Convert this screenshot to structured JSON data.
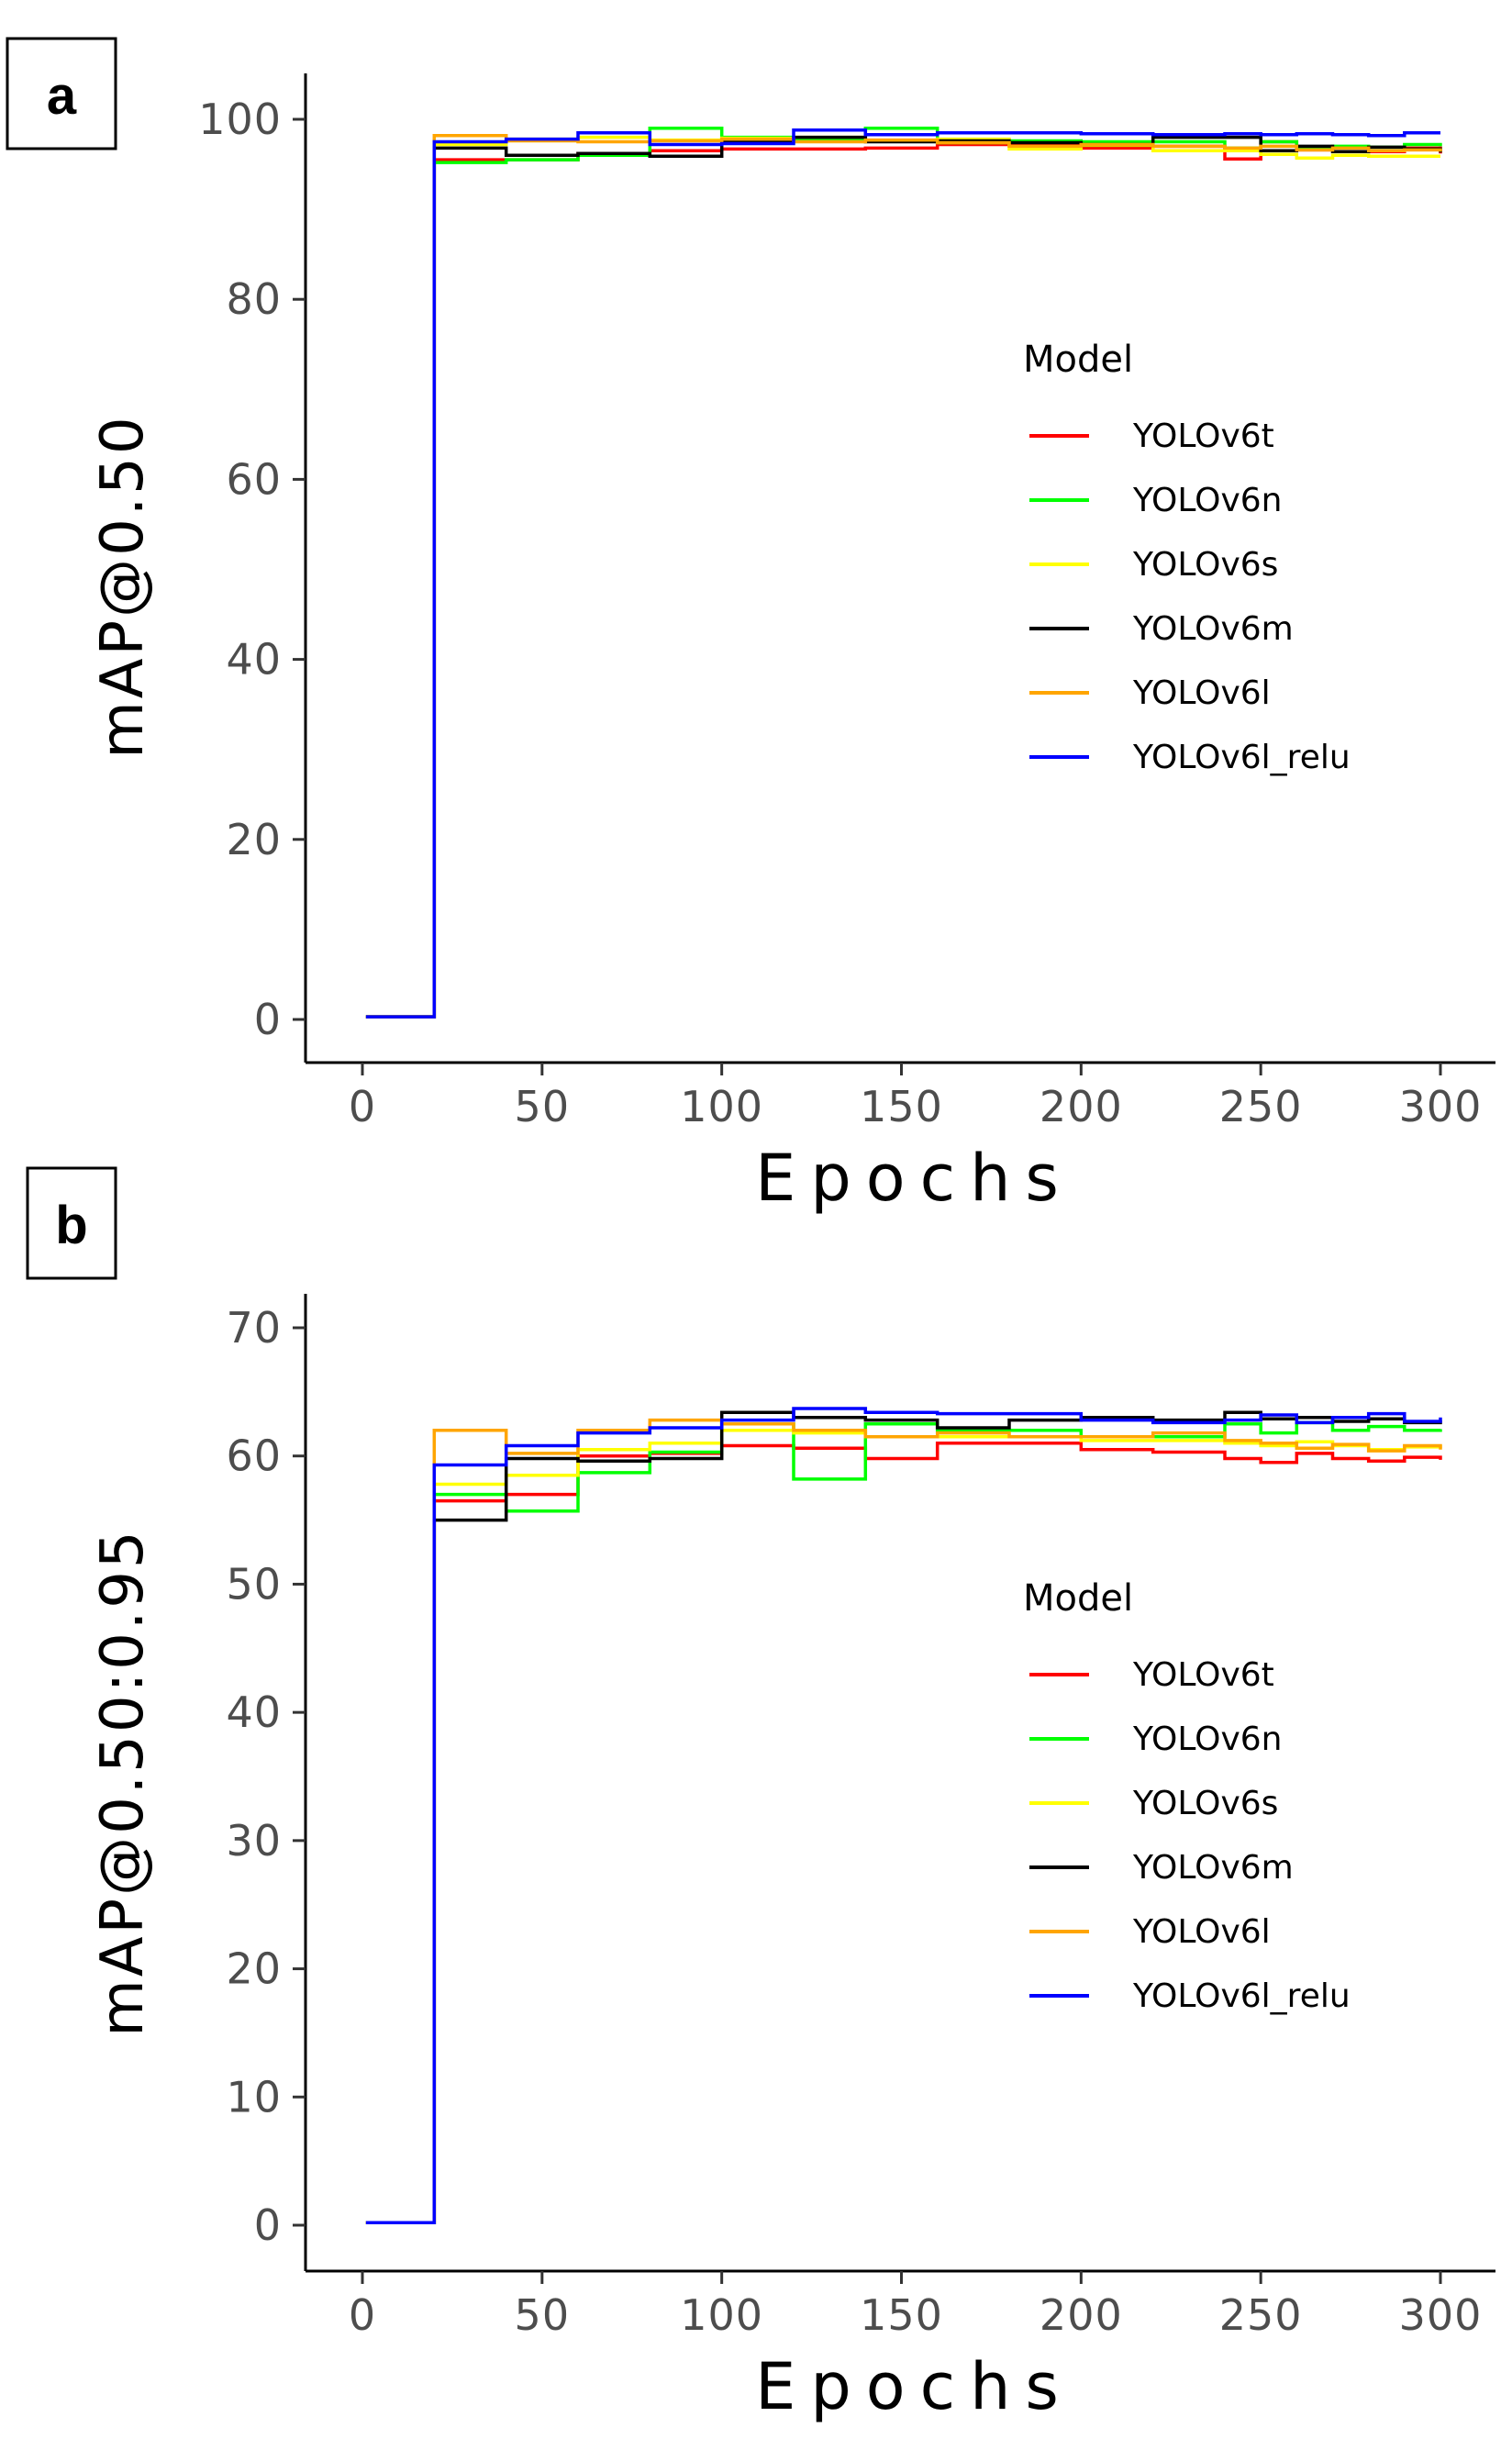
{
  "chart_data": [
    {
      "type": "line",
      "panel": "a",
      "title": "",
      "xlabel": "Epochs",
      "ylabel": "mAP@0.50",
      "xlim": [
        0,
        300
      ],
      "ylim": [
        0,
        100
      ],
      "xticks": [
        "0",
        "50",
        "100",
        "150",
        "200",
        "250",
        "300"
      ],
      "yticks": [
        "0",
        "20",
        "40",
        "60",
        "80",
        "100"
      ],
      "legend_title": "Model",
      "legend_position": "right-middle",
      "series": [
        {
          "name": "YOLOv6t",
          "color": "#ff0000",
          "x": [
            1,
            20,
            20,
            40,
            60,
            80,
            100,
            120,
            140,
            160,
            180,
            200,
            220,
            240,
            250,
            260,
            270,
            280,
            290,
            300
          ],
          "y": [
            0.3,
            0.3,
            95.5,
            95.5,
            96.2,
            96.5,
            96.7,
            96.7,
            96.8,
            97.2,
            97.3,
            96.8,
            97.0,
            95.6,
            97.5,
            96.6,
            96.9,
            96.4,
            96.8,
            96.2
          ]
        },
        {
          "name": "YOLOv6n",
          "color": "#00ff00",
          "x": [
            1,
            20,
            20,
            40,
            60,
            80,
            100,
            120,
            140,
            160,
            180,
            200,
            220,
            240,
            250,
            260,
            270,
            280,
            290,
            300
          ],
          "y": [
            0.3,
            0.3,
            95.2,
            95.5,
            96.0,
            99.0,
            98.0,
            97.8,
            99.0,
            97.4,
            97.6,
            97.5,
            97.5,
            96.8,
            97.5,
            96.8,
            97.0,
            96.9,
            97.2,
            97.0
          ]
        },
        {
          "name": "YOLOv6s",
          "color": "#ffff00",
          "x": [
            1,
            20,
            20,
            40,
            60,
            80,
            100,
            120,
            140,
            160,
            180,
            200,
            220,
            240,
            250,
            260,
            270,
            280,
            290,
            300
          ],
          "y": [
            0.3,
            0.3,
            97.2,
            97.8,
            98.0,
            97.7,
            97.9,
            98.0,
            97.6,
            97.8,
            96.7,
            97.1,
            96.5,
            96.5,
            96.1,
            95.7,
            96.0,
            95.9,
            95.9,
            95.9
          ]
        },
        {
          "name": "YOLOv6m",
          "color": "#000000",
          "x": [
            1,
            20,
            20,
            40,
            60,
            80,
            100,
            120,
            140,
            160,
            180,
            200,
            220,
            240,
            250,
            260,
            270,
            280,
            290,
            300
          ],
          "y": [
            0.3,
            0.3,
            96.8,
            96.0,
            96.2,
            95.9,
            97.5,
            98.0,
            97.5,
            97.6,
            97.4,
            97.2,
            98.0,
            98.0,
            96.5,
            97.0,
            96.4,
            96.9,
            96.7,
            96.3
          ]
        },
        {
          "name": "YOLOv6l",
          "color": "#ffa500",
          "x": [
            1,
            20,
            20,
            40,
            60,
            80,
            100,
            120,
            140,
            160,
            180,
            200,
            220,
            240,
            250,
            260,
            270,
            280,
            290,
            300
          ],
          "y": [
            0.3,
            0.3,
            98.2,
            97.6,
            97.5,
            97.6,
            97.8,
            97.5,
            97.7,
            97.4,
            97.0,
            97.2,
            97.0,
            96.8,
            97.0,
            96.6,
            96.8,
            96.5,
            96.6,
            96.4
          ]
        },
        {
          "name": "YOLOv6l_relu",
          "color": "#0000ff",
          "x": [
            1,
            20,
            20,
            40,
            60,
            80,
            100,
            120,
            140,
            160,
            180,
            200,
            220,
            240,
            250,
            260,
            270,
            280,
            290,
            300
          ],
          "y": [
            0.3,
            0.3,
            97.5,
            97.8,
            98.5,
            97.2,
            97.3,
            98.8,
            98.3,
            98.5,
            98.5,
            98.4,
            98.3,
            98.4,
            98.3,
            98.4,
            98.3,
            98.2,
            98.5,
            98.5
          ]
        }
      ]
    },
    {
      "type": "line",
      "panel": "b",
      "title": "",
      "xlabel": "Epochs",
      "ylabel": "mAP@0.50:0.95",
      "xlim": [
        0,
        300
      ],
      "ylim": [
        0,
        70
      ],
      "xticks": [
        "0",
        "50",
        "100",
        "150",
        "200",
        "250",
        "300"
      ],
      "yticks": [
        "0",
        "10",
        "20",
        "30",
        "40",
        "50",
        "60",
        "70"
      ],
      "legend_title": "Model",
      "legend_position": "right-middle",
      "series": [
        {
          "name": "YOLOv6t",
          "color": "#ff0000",
          "x": [
            1,
            20,
            20,
            40,
            60,
            80,
            100,
            120,
            140,
            160,
            180,
            200,
            220,
            240,
            250,
            260,
            270,
            280,
            290,
            300
          ],
          "y": [
            0.2,
            0.2,
            56.5,
            57.0,
            60.0,
            60.2,
            60.8,
            60.6,
            59.8,
            61.0,
            61.0,
            60.5,
            60.3,
            59.8,
            59.5,
            60.2,
            59.8,
            59.6,
            59.9,
            59.7
          ]
        },
        {
          "name": "YOLOv6n",
          "color": "#00ff00",
          "x": [
            1,
            20,
            20,
            40,
            60,
            80,
            100,
            120,
            140,
            160,
            180,
            200,
            220,
            240,
            250,
            260,
            270,
            280,
            290,
            300
          ],
          "y": [
            0.2,
            0.2,
            57.0,
            55.7,
            58.7,
            60.3,
            62.5,
            58.2,
            62.5,
            62.0,
            62.0,
            61.5,
            61.5,
            62.5,
            61.8,
            62.6,
            62.0,
            62.3,
            62.0,
            62.1
          ]
        },
        {
          "name": "YOLOv6s",
          "color": "#ffff00",
          "x": [
            1,
            20,
            20,
            40,
            60,
            80,
            100,
            120,
            140,
            160,
            180,
            200,
            220,
            240,
            250,
            260,
            270,
            280,
            290,
            300
          ],
          "y": [
            0.2,
            0.2,
            57.8,
            58.5,
            60.5,
            61.0,
            62.0,
            61.8,
            61.5,
            61.5,
            61.5,
            61.2,
            61.2,
            61.0,
            60.8,
            61.1,
            60.8,
            60.5,
            60.7,
            60.6
          ]
        },
        {
          "name": "YOLOv6m",
          "color": "#000000",
          "x": [
            1,
            20,
            20,
            40,
            60,
            80,
            100,
            120,
            140,
            160,
            180,
            200,
            220,
            240,
            250,
            260,
            270,
            280,
            290,
            300
          ],
          "y": [
            0.2,
            0.2,
            55.0,
            59.8,
            59.6,
            59.8,
            63.4,
            63.0,
            62.8,
            62.2,
            62.8,
            63.0,
            62.8,
            63.4,
            62.9,
            63.0,
            62.7,
            62.9,
            62.6,
            62.8
          ]
        },
        {
          "name": "YOLOv6l",
          "color": "#ffa500",
          "x": [
            1,
            20,
            20,
            40,
            60,
            80,
            100,
            120,
            140,
            160,
            180,
            200,
            220,
            240,
            250,
            260,
            270,
            280,
            290,
            300
          ],
          "y": [
            0.2,
            0.2,
            62.0,
            60.2,
            62.0,
            62.8,
            62.5,
            62.0,
            61.5,
            61.8,
            61.5,
            61.5,
            61.8,
            61.2,
            61.0,
            60.6,
            60.9,
            60.4,
            60.8,
            60.5
          ]
        },
        {
          "name": "YOLOv6l_relu",
          "color": "#0000ff",
          "x": [
            1,
            20,
            20,
            40,
            60,
            80,
            100,
            120,
            140,
            160,
            180,
            200,
            220,
            240,
            250,
            260,
            270,
            280,
            290,
            300
          ],
          "y": [
            0.2,
            0.2,
            59.3,
            60.8,
            61.8,
            62.2,
            62.8,
            63.7,
            63.4,
            63.3,
            63.3,
            62.8,
            62.6,
            62.8,
            63.2,
            62.6,
            63.0,
            63.3,
            62.7,
            63.0
          ]
        }
      ]
    }
  ]
}
